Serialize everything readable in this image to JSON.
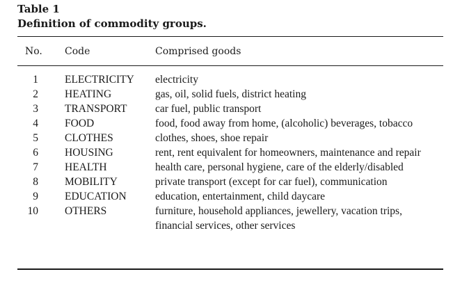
{
  "caption": {
    "label": "Table 1",
    "title": "Definition of commodity groups."
  },
  "headers": {
    "no": "No.",
    "code": "Code",
    "goods": "Comprised goods"
  },
  "rows": [
    {
      "no": "1",
      "code": "ELECTRICITY",
      "goods": "electricity"
    },
    {
      "no": "2",
      "code": "HEATING",
      "goods": "gas, oil, solid fuels, district heating"
    },
    {
      "no": "3",
      "code": "TRANSPORT",
      "goods": "car fuel, public transport"
    },
    {
      "no": "4",
      "code": "FOOD",
      "goods": "food, food away from home, (alcoholic) beverages, tobacco"
    },
    {
      "no": "5",
      "code": "CLOTHES",
      "goods": "clothes, shoes, shoe repair"
    },
    {
      "no": "6",
      "code": "HOUSING",
      "goods": "rent, rent equivalent for homeowners, maintenance and repair"
    },
    {
      "no": "7",
      "code": "HEALTH",
      "goods": "health care, personal hygiene, care of the elderly/disabled"
    },
    {
      "no": "8",
      "code": "MOBILITY",
      "goods": "private transport (except for car fuel), communication"
    },
    {
      "no": "9",
      "code": "EDUCATION",
      "goods": "education, entertainment, child daycare"
    },
    {
      "no": "10",
      "code": "OTHERS",
      "goods": "furniture, household appliances, jewellery, vacation trips, financial services, other services"
    }
  ]
}
